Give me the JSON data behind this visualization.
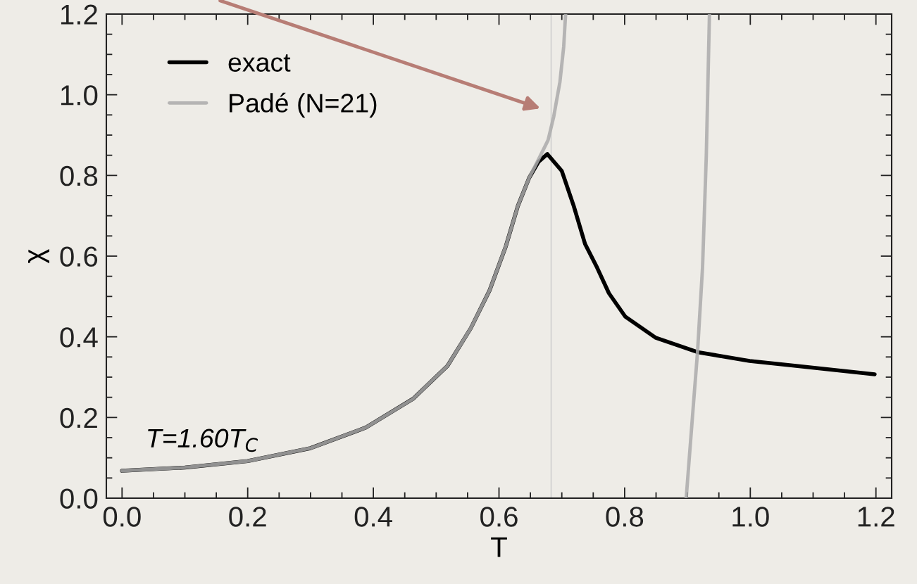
{
  "chart_data": {
    "type": "line",
    "xlabel": "T",
    "ylabel": "χ",
    "xlim": [
      -0.025,
      1.225
    ],
    "ylim": [
      0,
      1.2
    ],
    "xticks": [
      {
        "value": 0,
        "label": "0.0"
      },
      0.2,
      0.4,
      0.6,
      0.8,
      {
        "value": 1,
        "label": "1.0"
      },
      1.2
    ],
    "yticks": [
      {
        "value": 0,
        "label": "0.0"
      },
      0.2,
      0.4,
      0.6,
      0.8,
      {
        "value": 1,
        "label": "1.0"
      },
      1.2
    ],
    "legend": "top left",
    "grid": false,
    "marker": "none",
    "line_style": "solid",
    "ref_lines": [
      {
        "axis": "x",
        "value": 0.683,
        "color": "#cfcfcf"
      }
    ],
    "annotations": [
      "T=1.60T$_{C}$"
    ],
    "series": [
      {
        "name": "exact",
        "color": "#000000",
        "x": [
          0,
          0.1,
          0.2,
          0.3,
          0.388,
          0.463,
          0.518,
          0.555,
          0.585,
          0.611,
          0.63,
          0.648,
          0.663,
          0.677,
          0.7,
          0.719,
          0.737,
          0.756,
          0.775,
          0.801,
          0.849,
          0.916,
          0.999,
          1.073,
          1.198
        ],
        "values": [
          0.068,
          0.076,
          0.092,
          0.124,
          0.175,
          0.246,
          0.328,
          0.421,
          0.515,
          0.625,
          0.724,
          0.794,
          0.834,
          0.853,
          0.811,
          0.724,
          0.63,
          0.572,
          0.508,
          0.45,
          0.398,
          0.362,
          0.34,
          0.328,
          0.307
        ]
      },
      {
        "name": "Padé (N=21)",
        "color": "#aaaaaa",
        "x": [
          0,
          0.1,
          0.2,
          0.3,
          0.388,
          0.463,
          0.518,
          0.555,
          0.585,
          0.611,
          0.63,
          0.648,
          0.663,
          0.678,
          0.687,
          0.697,
          0.703,
          0.706,
          null,
          0.898,
          0.909,
          0.916,
          0.924,
          0.93,
          0.935
        ],
        "values": [
          0.068,
          0.076,
          0.092,
          0.124,
          0.175,
          0.246,
          0.328,
          0.421,
          0.515,
          0.625,
          0.724,
          0.794,
          0.84,
          0.887,
          0.945,
          1.032,
          1.119,
          1.2,
          null,
          0,
          0.223,
          0.362,
          0.572,
          0.85,
          1.2
        ]
      }
    ]
  }
}
